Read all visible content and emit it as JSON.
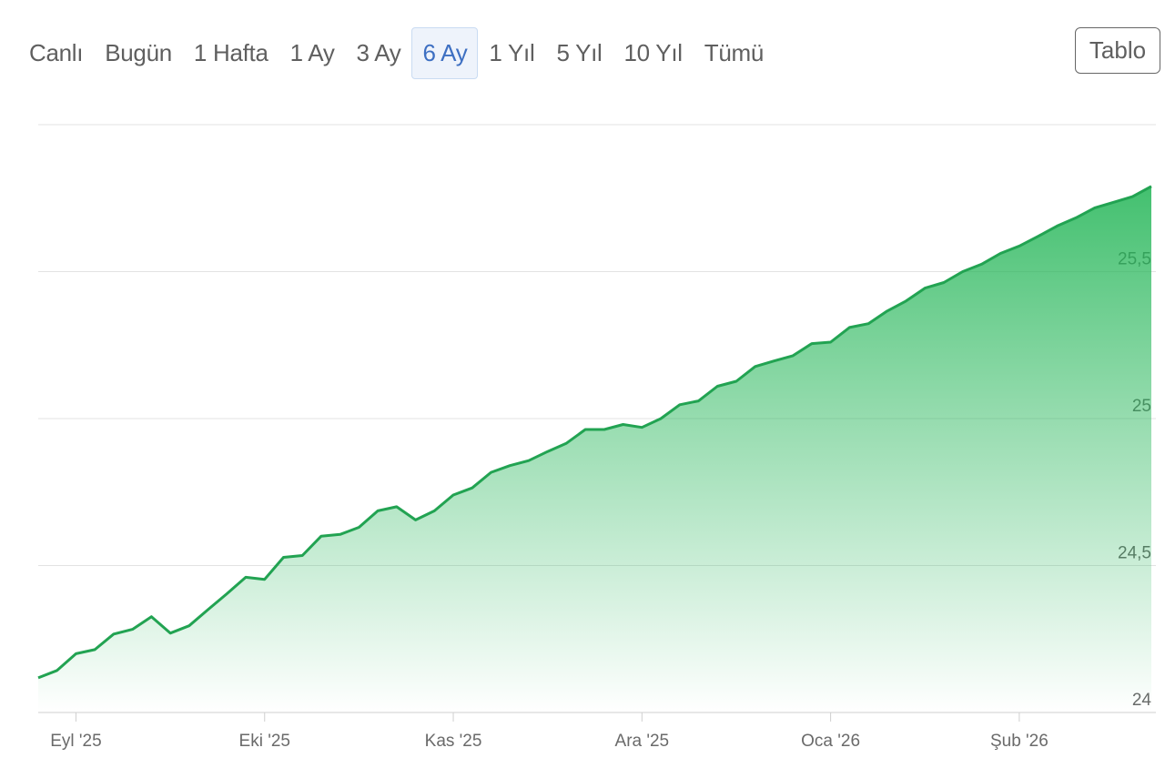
{
  "range_buttons": [
    "Canlı",
    "Bugün",
    "1 Hafta",
    "1 Ay",
    "3 Ay",
    "6 Ay",
    "1 Yıl",
    "5 Yıl",
    "10 Yıl",
    "Tümü"
  ],
  "selected_button": 5,
  "table_button": "Tablo",
  "chart_data": {
    "type": "area",
    "categories": [
      null,
      null,
      "Eyl '25",
      null,
      null,
      null,
      null,
      null,
      null,
      null,
      null,
      null,
      "Eki '25",
      null,
      null,
      null,
      null,
      null,
      null,
      null,
      null,
      null,
      "Kas '25",
      null,
      null,
      null,
      null,
      null,
      null,
      null,
      null,
      null,
      "Ara '25",
      null,
      null,
      null,
      null,
      null,
      null,
      null,
      null,
      null,
      "Oca '26",
      null,
      null,
      null,
      null,
      null,
      null,
      null,
      null,
      null,
      "Şub '26",
      null,
      null,
      null,
      null,
      null,
      null,
      null
    ],
    "values": [
      24.118,
      24.143,
      24.2,
      24.214,
      24.267,
      24.283,
      24.326,
      24.27,
      24.295,
      24.35,
      24.404,
      24.46,
      24.453,
      24.528,
      24.534,
      24.6,
      24.606,
      24.63,
      24.686,
      24.7,
      24.655,
      24.686,
      24.74,
      24.764,
      24.817,
      24.84,
      24.857,
      24.888,
      24.916,
      24.963,
      24.963,
      24.98,
      24.97,
      25.0,
      25.047,
      25.06,
      25.11,
      25.127,
      25.177,
      25.196,
      25.214,
      25.255,
      25.26,
      25.31,
      25.323,
      25.366,
      25.4,
      25.444,
      25.463,
      25.5,
      25.525,
      25.562,
      25.587,
      25.62,
      25.655,
      25.683,
      25.717,
      25.736,
      25.755,
      25.79
    ],
    "color": "#22a352",
    "ylim": [
      24,
      26
    ],
    "yticks": [
      24,
      {
        "value": 24.5,
        "label": "24,5"
      },
      25,
      {
        "value": 25.5,
        "label": "25,5"
      }
    ],
    "grid": true
  }
}
